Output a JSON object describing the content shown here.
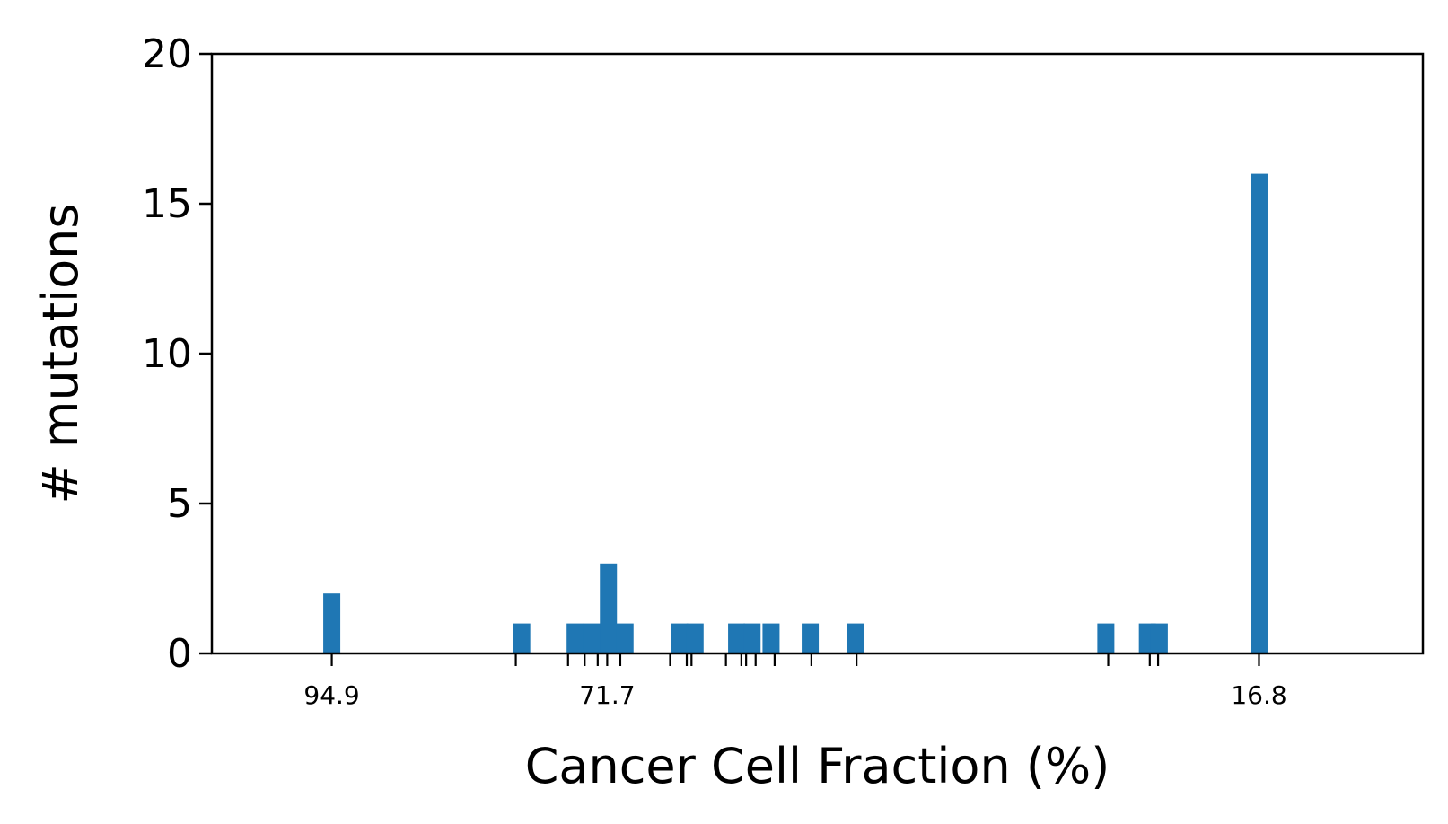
{
  "chart_data": {
    "type": "bar",
    "title": "",
    "xlabel": "Cancer Cell Fraction (%)",
    "ylabel": "# mutations",
    "x_direction": "reversed",
    "xlim": [
      105,
      3
    ],
    "ylim": [
      0,
      20
    ],
    "yticks": [
      0,
      5,
      10,
      15,
      20
    ],
    "xtick_labels": [
      "94.9",
      "71.7",
      "16.8"
    ],
    "xtick_label_values": [
      94.9,
      71.7,
      16.8
    ],
    "minor_tick_values": [
      94.9,
      79.4,
      75.0,
      73.6,
      72.5,
      71.7,
      70.6,
      66.4,
      65.0,
      64.6,
      61.7,
      60.4,
      60.0,
      59.2,
      57.6,
      54.5,
      50.7,
      29.5,
      26.0,
      25.3,
      16.8
    ],
    "series": [
      {
        "color": "#1f77b4",
        "bins": [
          {
            "x": 94.9,
            "value": 2
          },
          {
            "x": 78.9,
            "value": 1
          },
          {
            "x": 74.4,
            "value": 1
          },
          {
            "x": 73.0,
            "value": 1
          },
          {
            "x": 71.6,
            "value": 3
          },
          {
            "x": 70.2,
            "value": 1
          },
          {
            "x": 65.6,
            "value": 1
          },
          {
            "x": 64.3,
            "value": 1
          },
          {
            "x": 60.8,
            "value": 1
          },
          {
            "x": 59.5,
            "value": 1
          },
          {
            "x": 57.9,
            "value": 1
          },
          {
            "x": 54.6,
            "value": 1
          },
          {
            "x": 50.8,
            "value": 1
          },
          {
            "x": 29.7,
            "value": 1
          },
          {
            "x": 26.2,
            "value": 1
          },
          {
            "x": 25.2,
            "value": 1
          },
          {
            "x": 16.8,
            "value": 16
          }
        ]
      }
    ]
  }
}
